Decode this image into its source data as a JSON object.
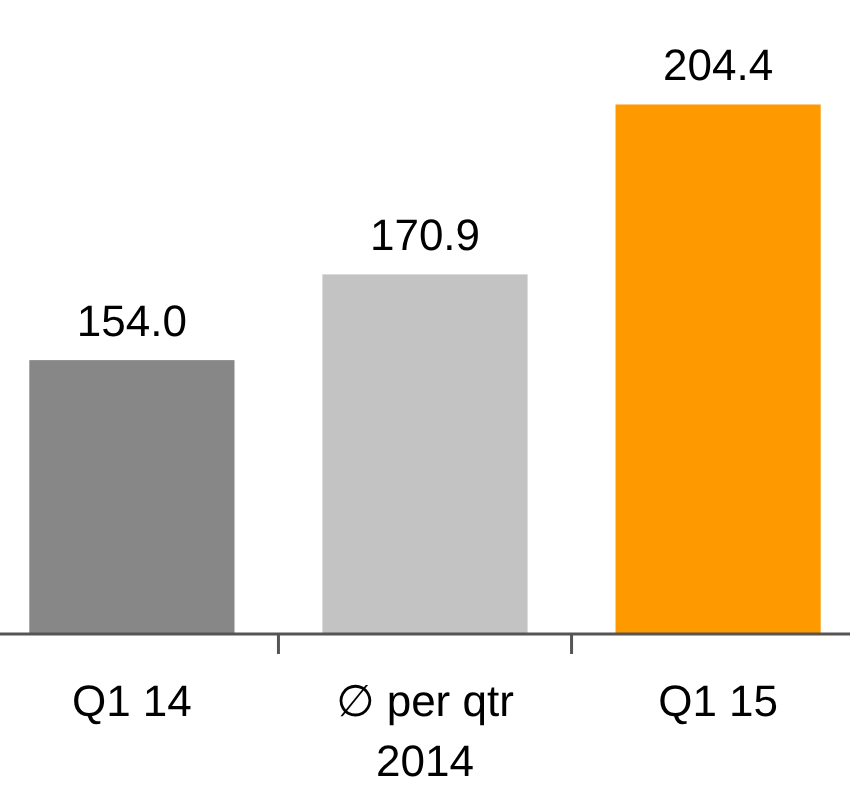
{
  "chart_data": {
    "type": "bar",
    "categories": [
      "Q1 14",
      "∅ per qtr 2014",
      "Q1 15"
    ],
    "values": [
      154.0,
      170.9,
      204.4
    ],
    "value_labels": [
      "154.0",
      "170.9",
      "204.4"
    ],
    "colors": [
      "#878787",
      "#c3c3c3",
      "#ff9900"
    ],
    "ylim": [
      100,
      225
    ]
  }
}
